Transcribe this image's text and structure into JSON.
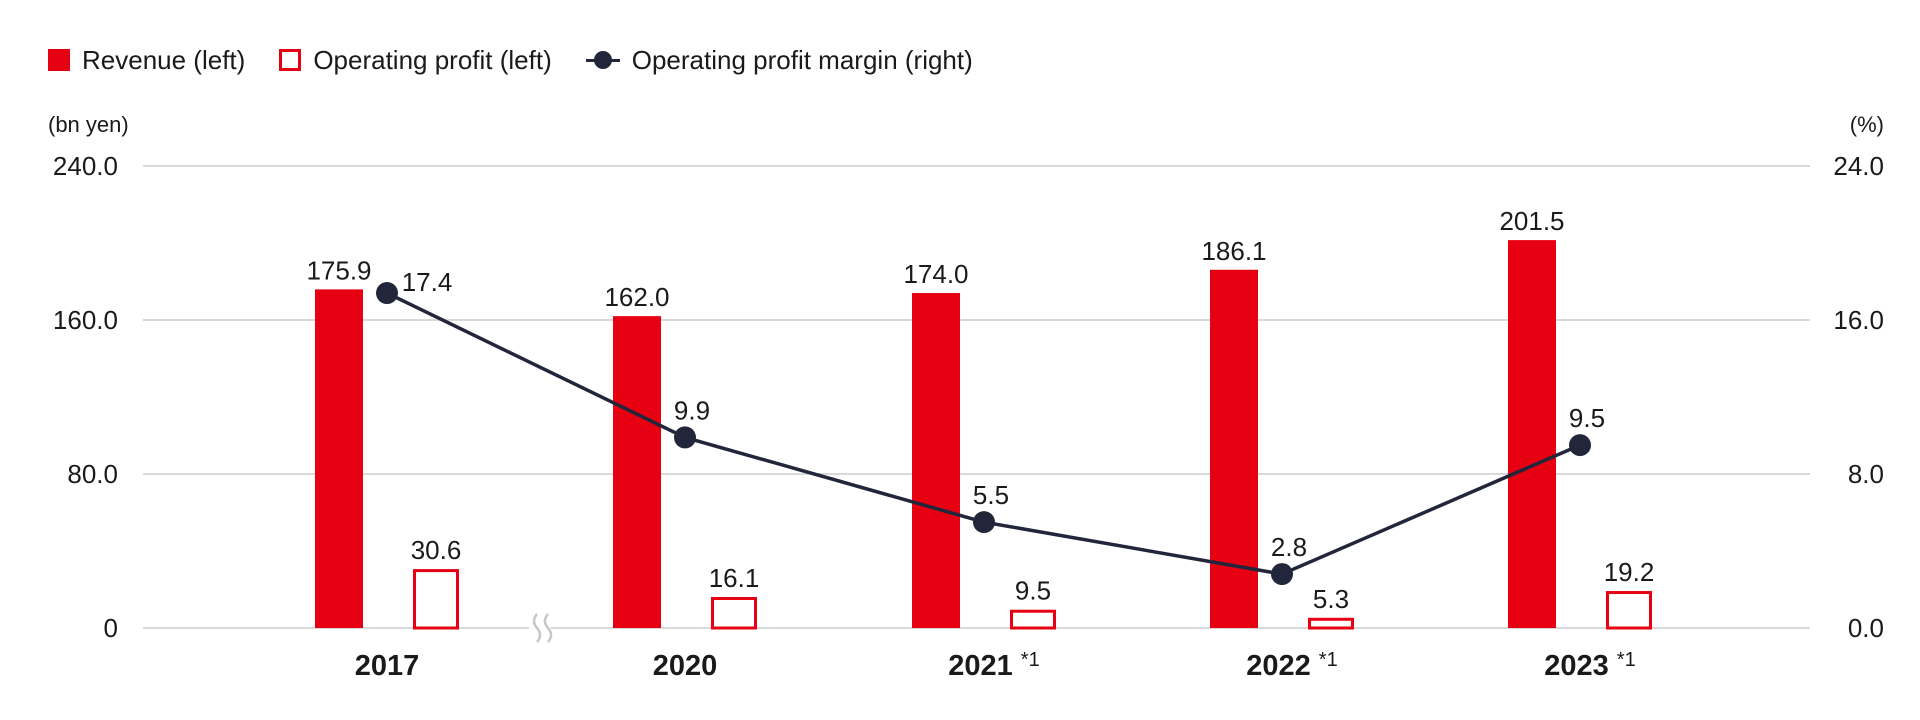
{
  "chart_data": {
    "type": "bar",
    "title": "",
    "categories": [
      "2017",
      "2020",
      "2021",
      "2022",
      "2023"
    ],
    "category_notes": [
      "",
      "",
      "*1",
      "*1",
      "*1"
    ],
    "axis_break_after": "2017",
    "series": [
      {
        "name": "Revenue (left)",
        "type": "bar",
        "style": "filled",
        "axis": "left",
        "color": "#e60012",
        "values": [
          175.9,
          162.0,
          174.0,
          186.1,
          201.5
        ],
        "labels": [
          "175.9",
          "162.0",
          "174.0",
          "186.1",
          "201.5"
        ]
      },
      {
        "name": "Operating profit (left)",
        "type": "bar",
        "style": "outline",
        "axis": "left",
        "color": "#e60012",
        "values": [
          30.6,
          16.1,
          9.5,
          5.3,
          19.2
        ],
        "labels": [
          "30.6",
          "16.1",
          "9.5",
          "5.3",
          "19.2"
        ]
      },
      {
        "name": "Operating profit margin (right)",
        "type": "line",
        "axis": "right",
        "color": "#22263a",
        "values": [
          17.4,
          9.9,
          5.5,
          2.8,
          9.5
        ],
        "labels": [
          "17.4",
          "9.9",
          "5.5",
          "2.8",
          "9.5"
        ]
      }
    ],
    "left_axis": {
      "unit_label": "(bn yen)",
      "ylim": [
        0,
        240
      ],
      "ticks": [
        0,
        80,
        160,
        240
      ],
      "tick_labels": [
        "0",
        "80.0",
        "160.0",
        "240.0"
      ]
    },
    "right_axis": {
      "unit_label": "(%)",
      "ylim": [
        0,
        24
      ],
      "ticks": [
        0,
        8,
        16,
        24
      ],
      "tick_labels": [
        "0.0",
        "8.0",
        "16.0",
        "24.0"
      ]
    },
    "grid": true,
    "legend_position": "top-left"
  },
  "legend": [
    {
      "label": "Revenue (left)"
    },
    {
      "label": "Operating profit (left)"
    },
    {
      "label": "Operating profit margin (right)"
    }
  ],
  "units": {
    "left": "(bn yen)",
    "right": "(%)"
  }
}
